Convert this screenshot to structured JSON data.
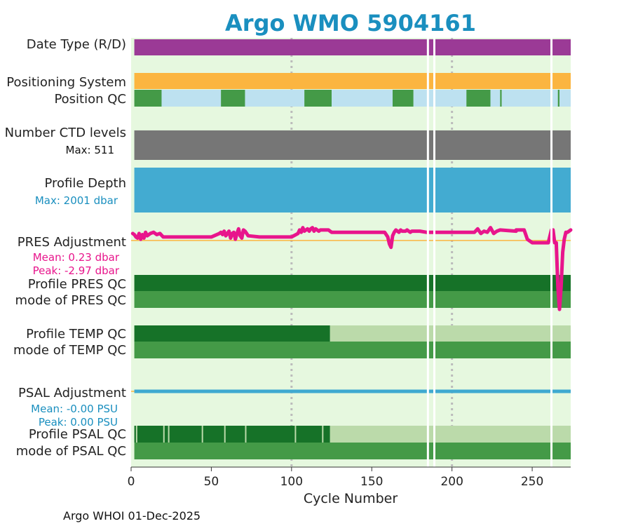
{
  "chart_data": {
    "type": "bar",
    "title": "Argo WMO 5904161",
    "xlabel": "Cycle Number",
    "ylabel": "",
    "footer": "Argo WHOI 01-Dec-2025",
    "xlim": [
      0,
      274
    ],
    "xticks": [
      0,
      50,
      100,
      150,
      200,
      250
    ],
    "gridlines_x": [
      100,
      200
    ],
    "missing_cycles": [
      185,
      189,
      262
    ],
    "colors": {
      "background": "#e6f8df",
      "title": "#1a8fbf",
      "date_type": "#9b3a96",
      "positioning": "#fbb540",
      "qc_good": "#449a47",
      "qc_interp": "#bde1f0",
      "qc_dark": "#167228",
      "qc_light": "#bbdaaa",
      "ctd": "#767676",
      "depth": "#43abd1",
      "pres": "#e8158c",
      "pres_zero": "#fbb540",
      "psal": "#3fa9d0",
      "psal_text": "#1a8fbf"
    },
    "rows": {
      "date_type": {
        "label": "Date Type (R/D)",
        "segments": [
          {
            "from": 2,
            "to": 274,
            "value": "D"
          }
        ]
      },
      "positioning": {
        "label": "Positioning System",
        "segments": [
          {
            "from": 2,
            "to": 274,
            "value": "GPS"
          }
        ]
      },
      "position_qc": {
        "label": "Position QC",
        "segments": [
          {
            "from": 2,
            "to": 19,
            "qc": 1
          },
          {
            "from": 19,
            "to": 56,
            "qc": 8
          },
          {
            "from": 56,
            "to": 71,
            "qc": 1
          },
          {
            "from": 71,
            "to": 108,
            "qc": 8
          },
          {
            "from": 108,
            "to": 125,
            "qc": 1
          },
          {
            "from": 125,
            "to": 163,
            "qc": 8
          },
          {
            "from": 163,
            "to": 176,
            "qc": 1
          },
          {
            "from": 176,
            "to": 209,
            "qc": 8
          },
          {
            "from": 209,
            "to": 224,
            "qc": 1
          },
          {
            "from": 224,
            "to": 230,
            "qc": 8
          },
          {
            "from": 230,
            "to": 231,
            "qc": 1
          },
          {
            "from": 231,
            "to": 266,
            "qc": 8
          },
          {
            "from": 266,
            "to": 267,
            "qc": 1
          },
          {
            "from": 267,
            "to": 274,
            "qc": 8
          }
        ]
      },
      "ctd_levels": {
        "label": "Number CTD levels",
        "max_label": "Max: 511",
        "max": 511,
        "typical": 500
      },
      "profile_depth": {
        "label": "Profile Depth",
        "max_label": "Max: 2001 dbar",
        "max": 2001
      },
      "pres_adjustment": {
        "label": "PRES Adjustment",
        "mean_label": "Mean: 0.23 dbar",
        "peak_label": "Peak: -2.97 dbar",
        "ylim": [
          -3.3,
          0.75
        ],
        "cycles": [
          1,
          2,
          3,
          4,
          5,
          6,
          7,
          8,
          9,
          10,
          12,
          14,
          16,
          18,
          20,
          30,
          40,
          50,
          55,
          56,
          57,
          58,
          59,
          60,
          61,
          62,
          63,
          64,
          65,
          66,
          67,
          68,
          69,
          70,
          71,
          72,
          73,
          80,
          90,
          100,
          104,
          105,
          106,
          107,
          108,
          109,
          110,
          111,
          112,
          113,
          114,
          115,
          116,
          117,
          118,
          119,
          120,
          121,
          122,
          123,
          124,
          125,
          130,
          140,
          150,
          156,
          158,
          160,
          161,
          162,
          163,
          164,
          165,
          166,
          167,
          168,
          169,
          170,
          171,
          172,
          173,
          174,
          175,
          176,
          180,
          184,
          188,
          190,
          200,
          210,
          214,
          216,
          218,
          220,
          222,
          224,
          226,
          228,
          230,
          240,
          240,
          245,
          247,
          250,
          255,
          260,
          262,
          263,
          264,
          265,
          266,
          267,
          268,
          269,
          270,
          271,
          272,
          273,
          274
        ],
        "values": [
          0.3,
          0.25,
          0.15,
          0.1,
          0.3,
          0.05,
          0.25,
          0.1,
          0.35,
          0.2,
          0.3,
          0.35,
          0.25,
          0.3,
          0.15,
          0.15,
          0.15,
          0.15,
          0.3,
          0.35,
          0.25,
          0.4,
          0.2,
          0.3,
          0.4,
          0.1,
          0.3,
          0.35,
          0.05,
          0.3,
          0.5,
          0.2,
          0.1,
          0.45,
          0.4,
          0.3,
          0.2,
          0.15,
          0.15,
          0.15,
          0.3,
          0.45,
          0.35,
          0.55,
          0.4,
          0.45,
          0.5,
          0.4,
          0.5,
          0.55,
          0.4,
          0.5,
          0.45,
          0.4,
          0.45,
          0.45,
          0.45,
          0.45,
          0.45,
          0.45,
          0.4,
          0.35,
          0.35,
          0.35,
          0.35,
          0.35,
          0.35,
          0.15,
          -0.15,
          -0.3,
          0.2,
          0.35,
          0.45,
          0.4,
          0.35,
          0.45,
          0.4,
          0.4,
          0.4,
          0.45,
          0.4,
          0.35,
          0.4,
          0.4,
          0.4,
          0.35,
          0.35,
          0.35,
          0.35,
          0.35,
          0.35,
          0.5,
          0.3,
          0.4,
          0.35,
          0.55,
          0.3,
          0.4,
          0.45,
          0.4,
          0.45,
          0.45,
          0.05,
          -0.1,
          -0.1,
          -0.1,
          0.45,
          0.45,
          -0.1,
          -0.1,
          -2.0,
          -2.97,
          -2.0,
          -0.5,
          0.05,
          0.35,
          0.35,
          0.4,
          0.45
        ]
      },
      "profile_pres_qc": {
        "label": "Profile PRES QC",
        "segments": [
          {
            "from": 2,
            "to": 274,
            "grade": "A"
          }
        ]
      },
      "mode_pres_qc": {
        "label": "mode of PRES QC",
        "segments": [
          {
            "from": 2,
            "to": 274,
            "qc": 1
          }
        ]
      },
      "profile_temp_qc": {
        "label": "Profile TEMP QC",
        "segments": [
          {
            "from": 2,
            "to": 124,
            "grade": "A"
          },
          {
            "from": 124,
            "to": 274,
            "grade": "F"
          }
        ]
      },
      "mode_temp_qc": {
        "label": "mode of TEMP QC",
        "segments": [
          {
            "from": 2,
            "to": 274,
            "qc": 1
          }
        ]
      },
      "psal_adjustment": {
        "label": "PSAL Adjustment",
        "mean_label": "Mean: -0.00 PSU",
        "peak_label": "Peak: 0.00 PSU",
        "value": 0.0
      },
      "profile_psal_qc": {
        "label": "Profile PSAL QC",
        "segments": [
          {
            "from": 2,
            "to": 124,
            "grade": "A"
          },
          {
            "from": 124,
            "to": 274,
            "grade": "F"
          }
        ],
        "light_ticks": [
          3,
          20,
          23,
          44,
          58,
          71,
          102,
          119
        ]
      },
      "mode_psal_qc": {
        "label": "mode of PSAL QC",
        "segments": [
          {
            "from": 2,
            "to": 274,
            "qc": 1
          }
        ]
      }
    }
  }
}
